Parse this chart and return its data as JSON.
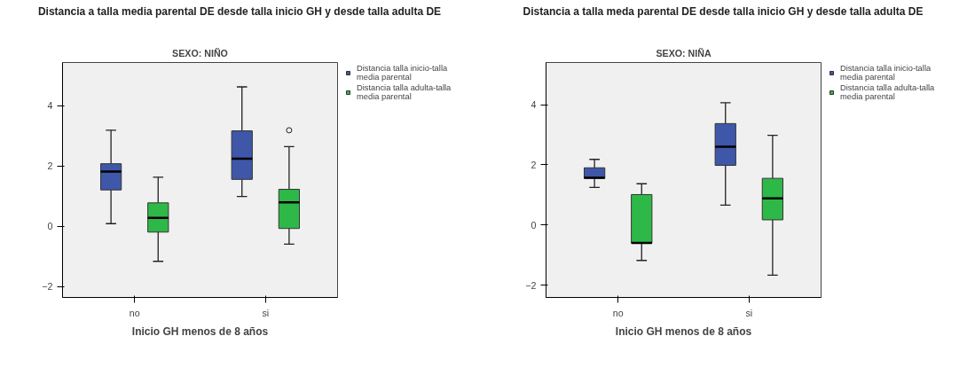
{
  "chart_data": [
    {
      "type": "box",
      "title": "Distancia a talla media parental DE desde talla inicio GH y desde talla adulta DE",
      "subtitle": "SEXO: NIÑO",
      "xlabel": "Inicio GH menos de 8 años",
      "categories": [
        "no",
        "si"
      ],
      "ylim": [
        -2.36,
        5.44
      ],
      "yticks": [
        -2,
        0,
        2,
        4
      ],
      "grid": false,
      "legend": "right",
      "series": [
        {
          "name": "Distancia talla inicio-talla media parental",
          "color": "#3f57a8",
          "boxes": [
            {
              "low": 0.09,
              "q1": 1.21,
              "median": 1.82,
              "q3": 2.08,
              "high": 3.19
            },
            {
              "low": 0.99,
              "q1": 1.56,
              "median": 2.25,
              "q3": 3.17,
              "high": 4.63
            }
          ]
        },
        {
          "name": "Distancia talla adulta-talla media parental",
          "color": "#2eb848",
          "boxes": [
            {
              "low": -1.16,
              "q1": -0.19,
              "median": 0.28,
              "q3": 0.78,
              "high": 1.63
            },
            {
              "low": -0.59,
              "q1": -0.07,
              "median": 0.8,
              "q3": 1.23,
              "high": 2.65,
              "outliers": [
                3.19
              ]
            }
          ]
        }
      ]
    },
    {
      "type": "box",
      "title": "Distancia a talla meda parental DE desde talla inicio GH y desde talla adulta DE",
      "subtitle": "SEXO: NIÑA",
      "xlabel": "Inicio GH menos de 8 años",
      "categories": [
        "no",
        "si"
      ],
      "ylim": [
        -2.41,
        5.4
      ],
      "yticks": [
        -2,
        0,
        2,
        4
      ],
      "grid": false,
      "legend": "right",
      "series": [
        {
          "name": "Distancia talla inicio-talla media parental",
          "color": "#3f57a8",
          "boxes": [
            {
              "low": 1.25,
              "q1": 1.55,
              "median": 1.57,
              "q3": 1.9,
              "high": 2.18
            },
            {
              "low": 0.66,
              "q1": 1.98,
              "median": 2.6,
              "q3": 3.37,
              "high": 4.06
            }
          ]
        },
        {
          "name": "Distancia talla adulta-talla media parental",
          "color": "#2eb848",
          "boxes": [
            {
              "low": -1.18,
              "q1": -0.6,
              "median": -0.6,
              "q3": 1.01,
              "high": 1.37
            },
            {
              "low": -1.67,
              "q1": 0.17,
              "median": 0.88,
              "q3": 1.55,
              "high": 2.98
            }
          ]
        }
      ]
    }
  ]
}
